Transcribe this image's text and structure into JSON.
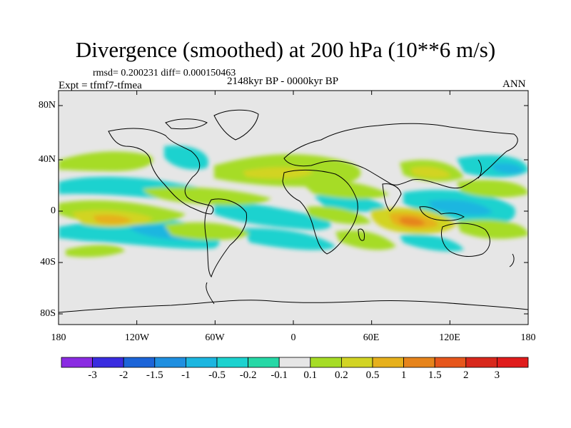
{
  "title": "Divergence (smoothed) at 200 hPa (10**6 m/s)",
  "stats": "rmsd= 0.200231 diff= 0.000150463",
  "experiment": "Expt = tfmf7-tfmea",
  "period": "2148kyr BP - 0000kyr BP",
  "season": "ANN",
  "axes": {
    "lat_ticks": [
      "80N",
      "40N",
      "0",
      "40S",
      "80S"
    ],
    "lon_ticks": [
      "180",
      "120W",
      "60W",
      "0",
      "60E",
      "120E",
      "180"
    ]
  },
  "colorbar": {
    "labels": [
      "-3",
      "-2",
      "-1.5",
      "-1",
      "-0.5",
      "-0.2",
      "-0.1",
      "0.1",
      "0.2",
      "0.5",
      "1",
      "1.5",
      "2",
      "3"
    ],
    "colors": [
      "#8a2be2",
      "#3a2ce0",
      "#1c64d8",
      "#1f8fe0",
      "#1cb6e0",
      "#1cd2cf",
      "#26d8a6",
      "#e6e6e6",
      "#a6dc26",
      "#d2d424",
      "#e6b01c",
      "#e6841c",
      "#e6561c",
      "#d8281c",
      "#e01c1c"
    ]
  },
  "palette": {
    "background": "#e6e6e6",
    "negative_light": "#1cd2cf",
    "negative_mid": "#1cb6e0",
    "negative_strong": "#1f8fe0",
    "positive_light": "#a6dc26",
    "positive_mid": "#d2d424",
    "positive_strong": "#e6b01c",
    "positive_peak": "#e6841c",
    "positive_max": "#e6561c",
    "coast": "#000000"
  }
}
